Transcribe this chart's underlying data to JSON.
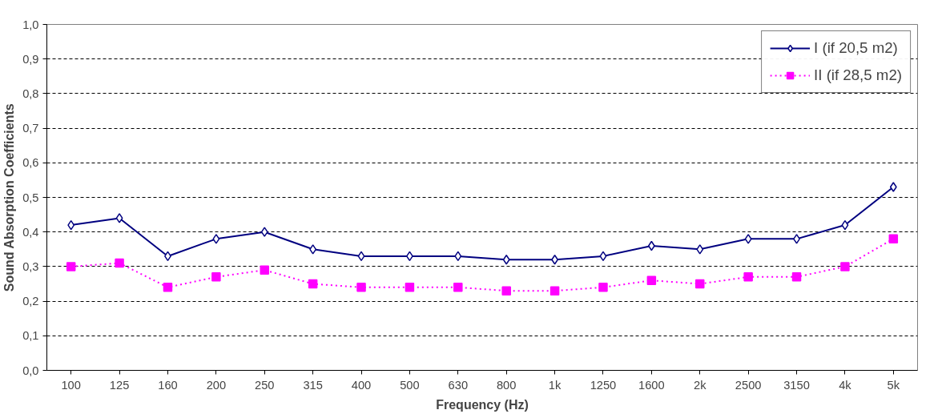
{
  "chart_data": {
    "type": "line",
    "xlabel": "Frequency (Hz)",
    "ylabel": "Sound Absorption Coefficients",
    "categories": [
      "100",
      "125",
      "160",
      "200",
      "250",
      "315",
      "400",
      "500",
      "630",
      "800",
      "1k",
      "1250",
      "1600",
      "2k",
      "2500",
      "3150",
      "4k",
      "5k"
    ],
    "series": [
      {
        "name": "I (if 20,5 m2)",
        "color": "#000080",
        "marker": "diamond",
        "line_style": "solid",
        "values": [
          0.42,
          0.44,
          0.33,
          0.38,
          0.4,
          0.35,
          0.33,
          0.33,
          0.33,
          0.32,
          0.32,
          0.33,
          0.36,
          0.35,
          0.38,
          0.38,
          0.42,
          0.53
        ]
      },
      {
        "name": "II (if 28,5 m2)",
        "color": "#ff00ff",
        "marker": "square",
        "line_style": "dotted",
        "values": [
          0.3,
          0.31,
          0.24,
          0.27,
          0.29,
          0.25,
          0.24,
          0.24,
          0.24,
          0.23,
          0.23,
          0.24,
          0.26,
          0.25,
          0.27,
          0.27,
          0.3,
          0.38
        ]
      }
    ],
    "ylim": [
      0,
      1
    ],
    "yticks": [
      {
        "value": 0,
        "label": "0,0"
      },
      {
        "value": 0.1,
        "label": "0,1"
      },
      {
        "value": 0.2,
        "label": "0,2"
      },
      {
        "value": 0.3,
        "label": "0,3"
      },
      {
        "value": 0.4,
        "label": "0,4"
      },
      {
        "value": 0.5,
        "label": "0,5"
      },
      {
        "value": 0.6,
        "label": "0,6"
      },
      {
        "value": 0.7,
        "label": "0,7"
      },
      {
        "value": 0.8,
        "label": "0,8"
      },
      {
        "value": 0.9,
        "label": "0,9"
      },
      {
        "value": 1,
        "label": "1,0"
      }
    ],
    "grid": "y",
    "legend": "top right"
  }
}
